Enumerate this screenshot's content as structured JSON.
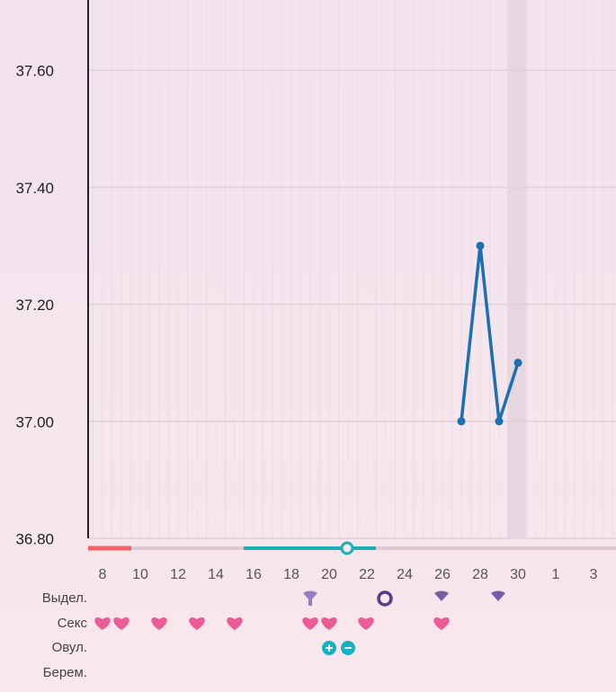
{
  "chart_data": {
    "type": "line",
    "categories": [
      "8",
      null,
      "10",
      null,
      "12",
      null,
      "14",
      null,
      "16",
      null,
      "18",
      null,
      "20",
      null,
      "22",
      null,
      "24",
      null,
      "26",
      null,
      "28",
      null,
      "30",
      null,
      "1",
      null,
      "3"
    ],
    "series": [
      {
        "color": "#1b6fb2",
        "values": [
          null,
          null,
          null,
          null,
          null,
          null,
          null,
          null,
          null,
          null,
          null,
          null,
          null,
          null,
          null,
          null,
          null,
          null,
          null,
          37.0,
          37.3,
          37.0,
          37.1,
          null,
          null,
          null,
          null
        ]
      }
    ],
    "ylim": [
      36.8,
      37.72
    ],
    "yticks": [
      {
        "value": 36.8,
        "label": "36.80"
      },
      {
        "value": 37.0,
        "label": "37.00"
      },
      {
        "value": 37.2,
        "label": "37.20"
      },
      {
        "value": 37.4,
        "label": "37.40"
      },
      {
        "value": 37.6,
        "label": "37.60"
      }
    ],
    "grid": true,
    "rows": [
      "Выдел.",
      "Секс",
      "Овул.",
      "Берем."
    ]
  }
}
